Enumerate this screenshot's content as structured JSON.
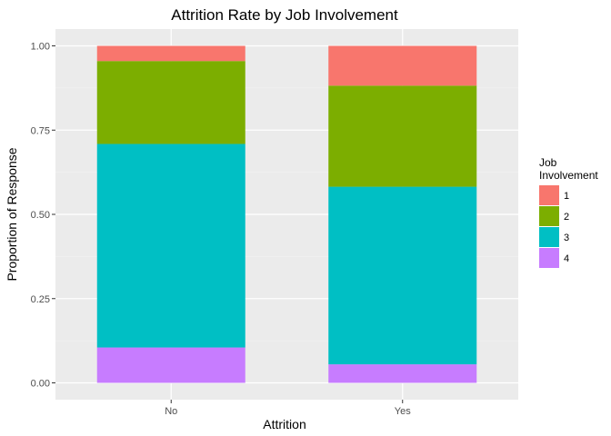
{
  "chart_data": {
    "type": "bar",
    "stacked": true,
    "title": "Attrition Rate by Job Involvement",
    "xlabel": "Attrition",
    "ylabel": "Proportion of Response",
    "categories": [
      "No",
      "Yes"
    ],
    "ylim": [
      0,
      1
    ],
    "yticks": [
      "0.00",
      "0.25",
      "0.50",
      "0.75",
      "1.00"
    ],
    "legend_title": [
      "Job",
      "Involvement"
    ],
    "legend_position": "right",
    "grid": true,
    "series": [
      {
        "name": "1",
        "color": "#F8766D",
        "values": [
          0.045,
          0.118
        ]
      },
      {
        "name": "2",
        "color": "#7CAE00",
        "values": [
          0.246,
          0.3
        ]
      },
      {
        "name": "3",
        "color": "#00BFC4",
        "values": [
          0.604,
          0.527
        ]
      },
      {
        "name": "4",
        "color": "#C77CFF",
        "values": [
          0.105,
          0.055
        ]
      }
    ]
  }
}
